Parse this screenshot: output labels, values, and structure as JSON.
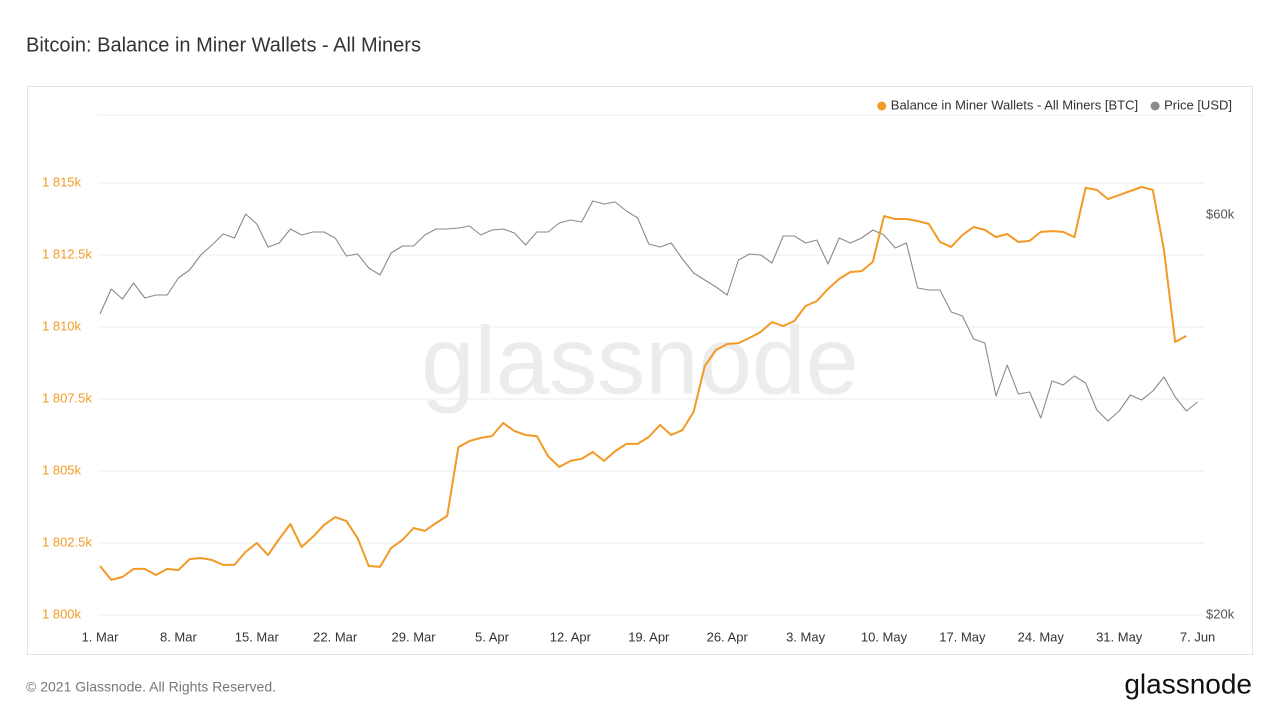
{
  "chart_data": {
    "type": "line",
    "title": "Bitcoin: Balance in Miner Wallets - All Miners",
    "categories": [
      "1. Mar",
      null,
      null,
      null,
      null,
      null,
      null,
      "8. Mar",
      null,
      null,
      null,
      null,
      null,
      null,
      "15. Mar",
      null,
      null,
      null,
      null,
      null,
      null,
      "22. Mar",
      null,
      null,
      null,
      null,
      null,
      null,
      "29. Mar",
      null,
      null,
      null,
      null,
      null,
      null,
      "5. Apr",
      null,
      null,
      null,
      null,
      null,
      null,
      "12. Apr",
      null,
      null,
      null,
      null,
      null,
      null,
      "19. Apr",
      null,
      null,
      null,
      null,
      null,
      null,
      "26. Apr",
      null,
      null,
      null,
      null,
      null,
      null,
      "3. May",
      null,
      null,
      null,
      null,
      null,
      null,
      "10. May",
      null,
      null,
      null,
      null,
      null,
      null,
      "17. May",
      null,
      null,
      null,
      null,
      null,
      null,
      "24. May",
      null,
      null,
      null,
      null,
      null,
      null,
      "31. May",
      null,
      null,
      null,
      null,
      null,
      null,
      "7. Jun"
    ],
    "series": [
      {
        "name": "Balance in Miner Wallets - All Miners [BTC]",
        "color": "#f39a26",
        "axis": "y",
        "values": [
          1801700,
          1801220,
          1801320,
          1801600,
          1801600,
          1801390,
          1801600,
          1801560,
          1801940,
          1801980,
          1801910,
          1801740,
          1801740,
          1802190,
          1802500,
          1802080,
          1802640,
          1803160,
          1802360,
          1802710,
          1803120,
          1803400,
          1803260,
          1802670,
          1801700,
          1801670,
          1802330,
          1802600,
          1803020,
          1802920,
          1803190,
          1803440,
          1805830,
          1806040,
          1806150,
          1806210,
          1806670,
          1806390,
          1806250,
          1806210,
          1805520,
          1805140,
          1805350,
          1805420,
          1805660,
          1805350,
          1805690,
          1805940,
          1805940,
          1806180,
          1806600,
          1806250,
          1806420,
          1807050,
          1808650,
          1809200,
          1809410,
          1809440,
          1809620,
          1809830,
          1810170,
          1810030,
          1810210,
          1810730,
          1810900,
          1811320,
          1811670,
          1811910,
          1811940,
          1812260,
          1813850,
          1813750,
          1813750,
          1813680,
          1813580,
          1812950,
          1812780,
          1813190,
          1813470,
          1813370,
          1813120,
          1813230,
          1812950,
          1812990,
          1813300,
          1813330,
          1813300,
          1813120,
          1814830,
          1814760,
          1814440,
          1814580,
          1814720,
          1814860,
          1814760,
          1812670,
          1809480,
          1809690,
          null
        ]
      },
      {
        "name": "Price [USD]",
        "color": "#8a8a8a",
        "axis": "y2",
        "values": [
          50100,
          52600,
          51600,
          53200,
          51700,
          52000,
          52000,
          53700,
          54500,
          56000,
          57000,
          58100,
          57700,
          60100,
          59100,
          56800,
          57200,
          58600,
          58000,
          58300,
          58300,
          57700,
          55900,
          56100,
          54700,
          54000,
          56200,
          56900,
          56900,
          58000,
          58600,
          58600,
          58700,
          58900,
          58000,
          58500,
          58600,
          58200,
          57000,
          58300,
          58300,
          59200,
          59500,
          59300,
          61400,
          61100,
          61300,
          60400,
          59700,
          57100,
          56800,
          57200,
          55600,
          54200,
          53500,
          52800,
          52000,
          55500,
          56100,
          56000,
          55200,
          57900,
          57900,
          57200,
          57500,
          55100,
          57700,
          57200,
          57700,
          58500,
          58000,
          56700,
          57200,
          52700,
          52500,
          52500,
          50300,
          49900,
          47600,
          47200,
          41900,
          45000,
          42100,
          42300,
          39700,
          43400,
          43000,
          43900,
          43200,
          40500,
          39400,
          40400,
          42000,
          41500,
          42400,
          43800,
          41800,
          40400,
          41300
        ]
      }
    ],
    "ylim": [
      1800000,
      1817360
    ],
    "yticks": [
      {
        "value": 1800000,
        "label": "1 800k"
      },
      {
        "value": 1802500,
        "label": "1 802.5k"
      },
      {
        "value": 1805000,
        "label": "1 805k"
      },
      {
        "value": 1807500,
        "label": "1 807.5k"
      },
      {
        "value": 1810000,
        "label": "1 810k"
      },
      {
        "value": 1812500,
        "label": "1 812.5k"
      },
      {
        "value": 1815000,
        "label": "1 815k"
      }
    ],
    "y2lim": [
      20000,
      70000
    ],
    "y2ticks": [
      {
        "value": 20000,
        "label": "$20k"
      },
      {
        "value": 60000,
        "label": "$60k"
      }
    ],
    "grid": true,
    "legend": "top-right"
  },
  "watermark": "glassnode",
  "footer": {
    "copyright": "© 2021 Glassnode. All Rights Reserved.",
    "logo": "glassnode"
  }
}
